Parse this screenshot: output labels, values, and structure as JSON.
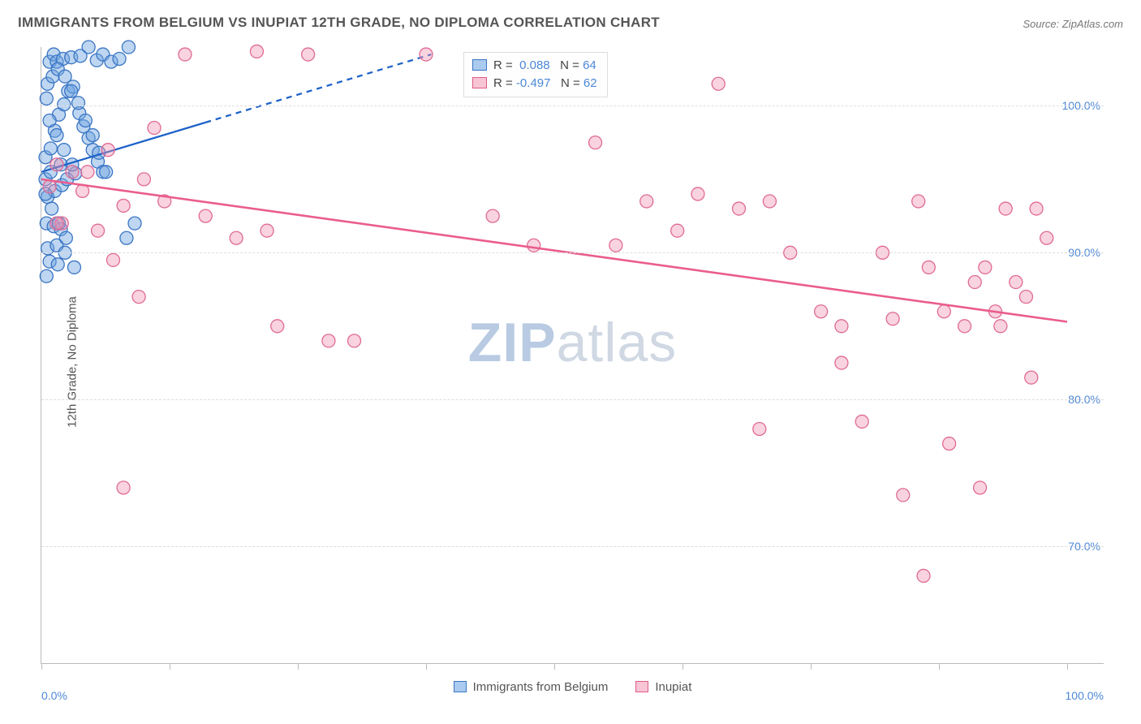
{
  "title": "IMMIGRANTS FROM BELGIUM VS INUPIAT 12TH GRADE, NO DIPLOMA CORRELATION CHART",
  "source": "Source: ZipAtlas.com",
  "ylabel": "12th Grade, No Diploma",
  "watermark": {
    "zip": "ZIP",
    "rest": "atlas"
  },
  "chart": {
    "type": "scatter",
    "background_color": "#ffffff",
    "grid_color": "#dddddd",
    "axis_color": "#bbbbbb",
    "xlim": [
      0,
      100
    ],
    "ylim": [
      62,
      104
    ],
    "y_ticks": [
      70,
      80,
      90,
      100
    ],
    "y_tick_labels": [
      "70.0%",
      "80.0%",
      "90.0%",
      "100.0%"
    ],
    "x_ticks": [
      0,
      12.5,
      25,
      37.5,
      50,
      62.5,
      75,
      87.5,
      100
    ],
    "x_endpoint_labels": [
      "0.0%",
      "100.0%"
    ],
    "label_color": "#4d88d6",
    "label_fontsize": 14,
    "title_fontsize": 17,
    "title_color": "#555555",
    "point_radius": 8,
    "point_stroke_width": 1.3,
    "series": [
      {
        "name": "Immigrants from Belgium",
        "fill": "rgba(110,165,225,0.45)",
        "stroke": "#3a75c4",
        "R": "0.088",
        "N": "64",
        "trend": {
          "x1": 0,
          "y1": 95.5,
          "x2": 38,
          "y2": 103.5,
          "solid_until_x": 16,
          "color": "#1e63c9",
          "width": 2.3
        },
        "points": [
          [
            0.5,
            100.5
          ],
          [
            0.8,
            103
          ],
          [
            1.2,
            103.5
          ],
          [
            1.5,
            103
          ],
          [
            2.1,
            103.2
          ],
          [
            2.9,
            103.3
          ],
          [
            3.8,
            103.4
          ],
          [
            4.6,
            104
          ],
          [
            5.4,
            103.1
          ],
          [
            6.0,
            103.5
          ],
          [
            6.8,
            103
          ],
          [
            7.6,
            103.2
          ],
          [
            8.5,
            104
          ],
          [
            0.4,
            96.5
          ],
          [
            0.9,
            97.1
          ],
          [
            1.3,
            98.3
          ],
          [
            1.7,
            99.4
          ],
          [
            2.2,
            100.1
          ],
          [
            2.6,
            101.0
          ],
          [
            3.1,
            101.3
          ],
          [
            3.7,
            99.5
          ],
          [
            4.1,
            98.6
          ],
          [
            4.6,
            97.8
          ],
          [
            5.0,
            97.0
          ],
          [
            5.5,
            96.2
          ],
          [
            6.0,
            95.5
          ],
          [
            0.6,
            93.8
          ],
          [
            1.3,
            94.2
          ],
          [
            2.0,
            94.6
          ],
          [
            2.5,
            95.0
          ],
          [
            3.3,
            95.4
          ],
          [
            0.5,
            92.0
          ],
          [
            1.2,
            91.8
          ],
          [
            1.9,
            91.6
          ],
          [
            0.6,
            90.3
          ],
          [
            1.5,
            90.5
          ],
          [
            2.3,
            90.0
          ],
          [
            0.8,
            89.4
          ],
          [
            1.6,
            89.2
          ],
          [
            3.2,
            89.0
          ],
          [
            8.3,
            91.0
          ],
          [
            9.1,
            92.0
          ],
          [
            0.5,
            88.4
          ],
          [
            0.4,
            95.0
          ],
          [
            0.9,
            95.5
          ],
          [
            1.9,
            96.0
          ],
          [
            0.6,
            101.5
          ],
          [
            1.1,
            102.0
          ],
          [
            1.6,
            102.5
          ],
          [
            2.3,
            102.0
          ],
          [
            2.9,
            101.0
          ],
          [
            3.6,
            100.2
          ],
          [
            4.3,
            99.0
          ],
          [
            5.0,
            98.0
          ],
          [
            5.6,
            96.8
          ],
          [
            6.3,
            95.5
          ],
          [
            0.8,
            99.0
          ],
          [
            1.5,
            98.0
          ],
          [
            2.2,
            97.0
          ],
          [
            3.0,
            96.0
          ],
          [
            0.4,
            94.0
          ],
          [
            1.0,
            93.0
          ],
          [
            1.7,
            92.0
          ],
          [
            2.4,
            91.0
          ]
        ]
      },
      {
        "name": "Inupiat",
        "fill": "rgba(240,145,175,0.40)",
        "stroke": "#e06a95",
        "R": "-0.497",
        "N": "62",
        "trend": {
          "x1": 0,
          "y1": 95.0,
          "x2": 100,
          "y2": 85.3,
          "solid_until_x": 100,
          "color": "#ea5d8c",
          "width": 2.6
        },
        "points": [
          [
            2.0,
            92.0
          ],
          [
            4.0,
            94.2
          ],
          [
            6.5,
            97.0
          ],
          [
            8.0,
            93.2
          ],
          [
            10.0,
            95.0
          ],
          [
            11.0,
            98.5
          ],
          [
            12.0,
            93.5
          ],
          [
            14.0,
            103.5
          ],
          [
            16.0,
            92.5
          ],
          [
            19.0,
            91.0
          ],
          [
            21.0,
            103.7
          ],
          [
            22.0,
            91.5
          ],
          [
            23.0,
            85.0
          ],
          [
            26.0,
            103.5
          ],
          [
            28.0,
            84.0
          ],
          [
            30.5,
            84.0
          ],
          [
            9.5,
            87.0
          ],
          [
            8.0,
            74.0
          ],
          [
            37.5,
            103.5
          ],
          [
            54.0,
            97.5
          ],
          [
            56.0,
            90.5
          ],
          [
            59.0,
            93.5
          ],
          [
            62.0,
            91.5
          ],
          [
            64.0,
            94.0
          ],
          [
            66.0,
            101.5
          ],
          [
            68.0,
            93.0
          ],
          [
            78.0,
            85.0
          ],
          [
            70.0,
            78.0
          ],
          [
            73.0,
            90.0
          ],
          [
            76.0,
            86.0
          ],
          [
            78.0,
            82.5
          ],
          [
            80.0,
            78.5
          ],
          [
            82.0,
            90.0
          ],
          [
            83.0,
            85.5
          ],
          [
            84.0,
            73.5
          ],
          [
            85.5,
            93.5
          ],
          [
            86.5,
            89.0
          ],
          [
            86.0,
            68.0
          ],
          [
            88.0,
            86.0
          ],
          [
            88.5,
            77.0
          ],
          [
            90.0,
            85.0
          ],
          [
            91.0,
            88.0
          ],
          [
            91.5,
            74.0
          ],
          [
            92.0,
            89.0
          ],
          [
            93.0,
            86.0
          ],
          [
            93.5,
            85.0
          ],
          [
            94.0,
            93.0
          ],
          [
            95.0,
            88.0
          ],
          [
            96.0,
            87.0
          ],
          [
            96.5,
            81.5
          ],
          [
            97.0,
            93.0
          ],
          [
            98.0,
            91.0
          ],
          [
            71.0,
            93.5
          ],
          [
            44.0,
            92.5
          ],
          [
            48.0,
            90.5
          ],
          [
            3.0,
            95.5
          ],
          [
            5.5,
            91.5
          ],
          [
            7.0,
            89.5
          ],
          [
            1.5,
            92.0
          ],
          [
            0.8,
            94.5
          ],
          [
            1.5,
            96.0
          ],
          [
            4.5,
            95.5
          ]
        ]
      }
    ],
    "bottom_legend": [
      {
        "swatch": "blue",
        "label": "Immigrants from Belgium"
      },
      {
        "swatch": "pink",
        "label": "Inupiat"
      }
    ]
  }
}
